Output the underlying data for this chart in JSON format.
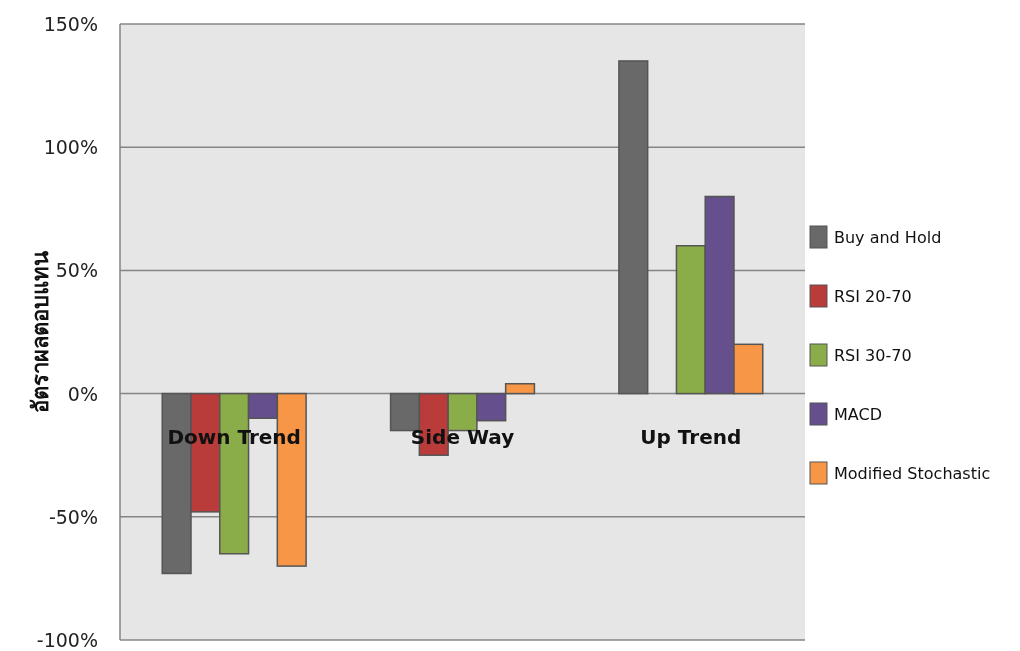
{
  "chart_data": {
    "type": "bar",
    "ylabel": "อัตราผลตอบแทน",
    "categories": [
      "Down Trend",
      "Side Way",
      "Up Trend"
    ],
    "series": [
      {
        "name": "Buy and Hold",
        "color": "#696969",
        "values": [
          -73,
          -15,
          135
        ]
      },
      {
        "name": "RSI 20-70",
        "color": "#b93b3a",
        "values": [
          -48,
          -25,
          0
        ]
      },
      {
        "name": "RSI 30-70",
        "color": "#8aad4a",
        "values": [
          -65,
          -15,
          60
        ]
      },
      {
        "name": "MACD",
        "color": "#654f8c",
        "values": [
          -10,
          -11,
          80
        ]
      },
      {
        "name": "Modified Stochastic",
        "color": "#f79646",
        "values": [
          -70,
          4,
          20
        ]
      }
    ],
    "ylim": [
      -100,
      150
    ],
    "yticks": [
      {
        "value": -100,
        "label": "-100%"
      },
      {
        "value": -50,
        "label": "-50%"
      },
      {
        "value": 0,
        "label": "0%"
      },
      {
        "value": 50,
        "label": "50%"
      },
      {
        "value": 100,
        "label": "100%"
      },
      {
        "value": 150,
        "label": "150%"
      }
    ],
    "grid": "y",
    "legend": "right"
  }
}
